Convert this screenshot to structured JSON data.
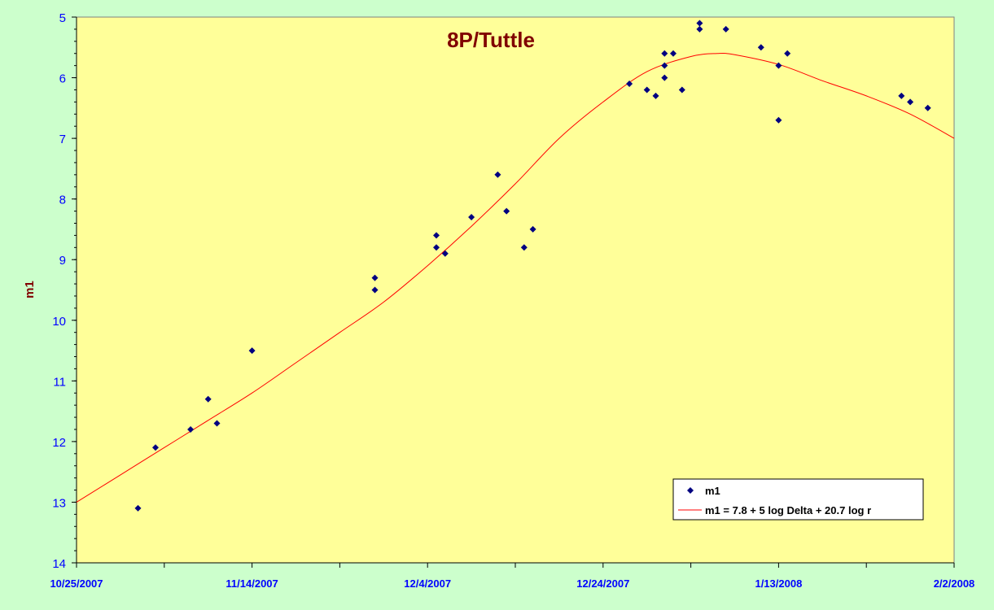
{
  "chart_data": {
    "type": "scatter",
    "title": "8P/Tuttle",
    "xlabel": "",
    "ylabel": "m1",
    "x_tick_labels": [
      "10/25/2007",
      "11/14/2007",
      "12/4/2007",
      "12/24/2007",
      "1/13/2008",
      "2/2/2008"
    ],
    "xlim": [
      "2007-10-25",
      "2008-02-02"
    ],
    "ylim": [
      5,
      14
    ],
    "y_inverted": true,
    "y_ticks": [
      5,
      6,
      7,
      8,
      9,
      10,
      11,
      12,
      13,
      14
    ],
    "grid": false,
    "legend_position": "bottom-right",
    "colors": {
      "background": "#ccffcc",
      "plot_area": "#ffff99",
      "axis_text": "#0000ff",
      "title": "#800000",
      "marker": "#000080",
      "fit_line": "#ff0000"
    },
    "series": [
      {
        "name": "m1",
        "type": "scatter",
        "marker": "diamond",
        "points": [
          [
            "2007-11-01",
            13.1
          ],
          [
            "2007-11-03",
            12.1
          ],
          [
            "2007-11-07",
            11.8
          ],
          [
            "2007-11-09",
            11.3
          ],
          [
            "2007-11-10",
            11.7
          ],
          [
            "2007-11-14",
            10.5
          ],
          [
            "2007-11-28",
            9.3
          ],
          [
            "2007-11-28",
            9.5
          ],
          [
            "2007-12-05",
            8.6
          ],
          [
            "2007-12-05",
            8.8
          ],
          [
            "2007-12-06",
            8.9
          ],
          [
            "2007-12-09",
            8.3
          ],
          [
            "2007-12-12",
            7.6
          ],
          [
            "2007-12-13",
            8.2
          ],
          [
            "2007-12-15",
            8.8
          ],
          [
            "2007-12-16",
            8.5
          ],
          [
            "2007-12-27",
            6.1
          ],
          [
            "2007-12-29",
            6.2
          ],
          [
            "2007-12-30",
            6.3
          ],
          [
            "2007-12-31",
            5.6
          ],
          [
            "2007-12-31",
            5.8
          ],
          [
            "2007-12-31",
            6.0
          ],
          [
            "2008-01-01",
            5.6
          ],
          [
            "2008-01-02",
            6.2
          ],
          [
            "2008-01-04",
            5.1
          ],
          [
            "2008-01-04",
            5.2
          ],
          [
            "2008-01-07",
            5.2
          ],
          [
            "2008-01-11",
            5.5
          ],
          [
            "2008-01-13",
            5.8
          ],
          [
            "2008-01-13",
            6.7
          ],
          [
            "2008-01-14",
            5.6
          ],
          [
            "2008-01-27",
            6.3
          ],
          [
            "2008-01-28",
            6.4
          ],
          [
            "2008-01-30",
            6.5
          ]
        ]
      },
      {
        "name": "m1 = 7.8 + 5 log Delta + 20.7 log r",
        "type": "line",
        "points": [
          [
            "2007-10-25",
            13.0
          ],
          [
            "2007-10-30",
            12.55
          ],
          [
            "2007-11-04",
            12.1
          ],
          [
            "2007-11-09",
            11.65
          ],
          [
            "2007-11-14",
            11.2
          ],
          [
            "2007-11-19",
            10.7
          ],
          [
            "2007-11-24",
            10.2
          ],
          [
            "2007-11-29",
            9.7
          ],
          [
            "2007-12-04",
            9.1
          ],
          [
            "2007-12-09",
            8.45
          ],
          [
            "2007-12-14",
            7.75
          ],
          [
            "2007-12-19",
            7.0
          ],
          [
            "2007-12-24",
            6.4
          ],
          [
            "2007-12-29",
            5.9
          ],
          [
            "2008-01-03",
            5.65
          ],
          [
            "2008-01-06",
            5.6
          ],
          [
            "2008-01-08",
            5.62
          ],
          [
            "2008-01-13",
            5.78
          ],
          [
            "2008-01-18",
            6.05
          ],
          [
            "2008-01-23",
            6.3
          ],
          [
            "2008-01-28",
            6.6
          ],
          [
            "2008-02-02",
            7.0
          ]
        ]
      }
    ]
  }
}
